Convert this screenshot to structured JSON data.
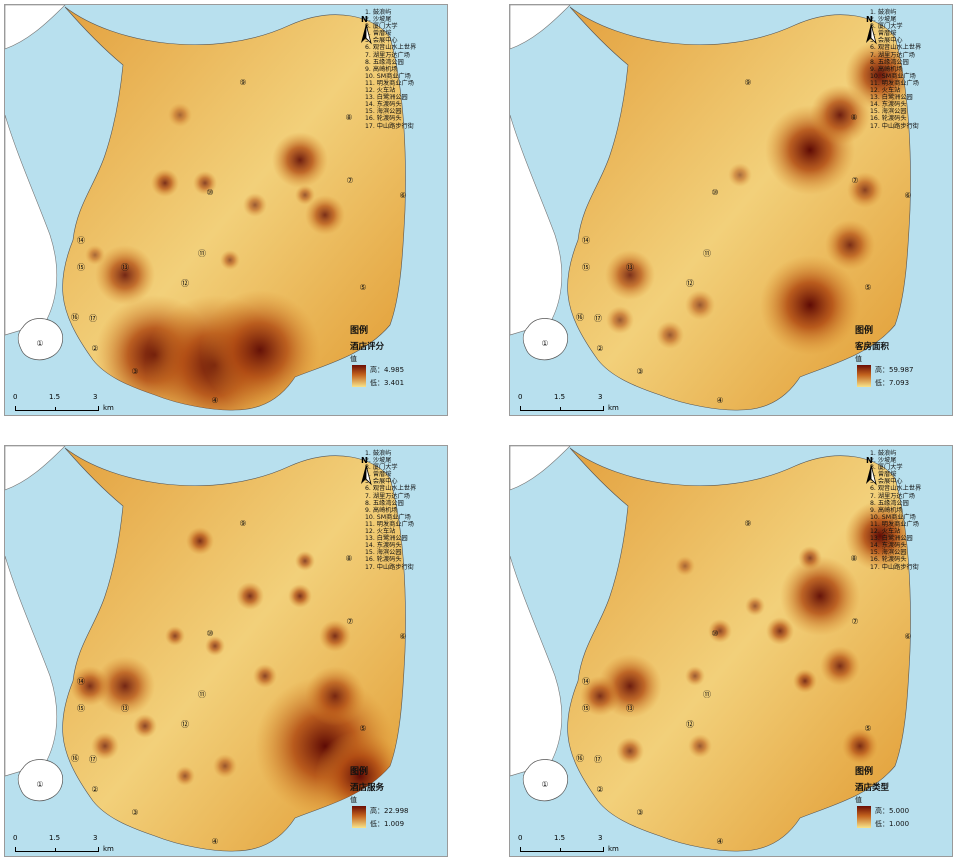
{
  "places": [
    "1. 鼓浪屿",
    "2. 沙坡尾",
    "3. 厦门大学",
    "4. 曾厝垵",
    "5. 会展中心",
    "6. 观音山水上世界",
    "7. 湖里万达广场",
    "8. 五缘湾公园",
    "9. 高崎机场",
    "10. SM商业广场",
    "11. 明发商业广场",
    "12. 火车站",
    "13. 白鹭洲公园",
    "14. 东渡码头",
    "15. 海滨公园",
    "16. 轮渡码头",
    "17. 中山路步行街"
  ],
  "compass": "N",
  "legend_title": "图例",
  "legend_value_label": "值",
  "scale": {
    "t0": "0",
    "t1": "1.5",
    "t2": "3",
    "unit": "km"
  },
  "maps": [
    {
      "field": "酒店评分",
      "high": "高：4.985",
      "low": "低：3.401",
      "hi_color": "#5e0b05",
      "lo_color": "#f8e89a"
    },
    {
      "field": "客房面积",
      "high": "高：59.987",
      "low": "低：7.093",
      "hi_color": "#5e0b05",
      "lo_color": "#f8e89a"
    },
    {
      "field": "酒店服务",
      "high": "高：22.998",
      "low": "低：1.009",
      "hi_color": "#5e0b05",
      "lo_color": "#f8e89a"
    },
    {
      "field": "酒店类型",
      "high": "高：5.000",
      "low": "低：1.000",
      "hi_color": "#5e0b05",
      "lo_color": "#f8e89a"
    }
  ],
  "marker_labels": [
    "①",
    "②",
    "③",
    "④",
    "⑤",
    "⑥",
    "⑦",
    "⑧",
    "⑨",
    "⑩",
    "⑪",
    "⑫",
    "⑬",
    "⑭",
    "⑮",
    "⑯",
    "⑰"
  ]
}
